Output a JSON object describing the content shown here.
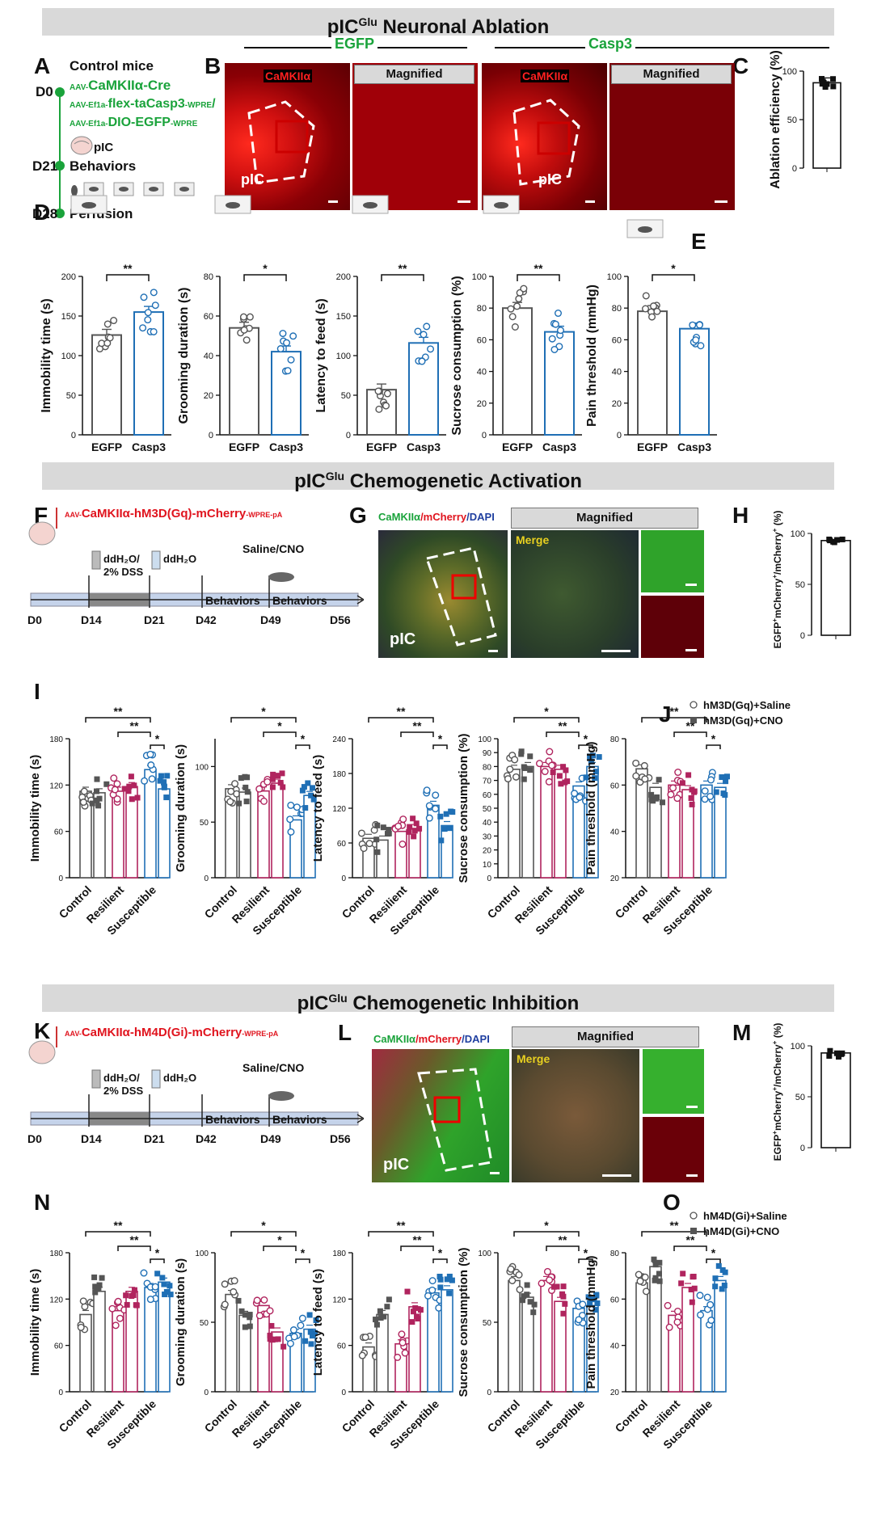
{
  "sections": {
    "ablation": {
      "title_main": "pIC",
      "title_sup": "Glu",
      "title_rest": " Neuronal Ablation"
    },
    "activation": {
      "title_main": "pIC",
      "title_sup": "Glu",
      "title_rest": " Chemogenetic Activation"
    },
    "inhibition": {
      "title_main": "pIC",
      "title_sup": "Glu",
      "title_rest": " Chemogenetic Inhibition"
    }
  },
  "panel_letters": {
    "A": "A",
    "B": "B",
    "C": "C",
    "D": "D",
    "E": "E",
    "F": "F",
    "G": "G",
    "H": "H",
    "I": "I",
    "J": "J",
    "K": "K",
    "L": "L",
    "M": "M",
    "N": "N",
    "O": "O"
  },
  "panelA": {
    "title": "Control mice",
    "d0": "D0",
    "d21": "D21",
    "d28": "D28",
    "virus1_prefix": "AAV-",
    "virus1": "CaMKIIα-Cre",
    "virus2_prefix": "AAV-Ef1a-",
    "virus2": "flex-taCasp3",
    "virus2_suffix": "-WPRE",
    "slash": "/",
    "virus3_prefix": "AAV-Ef1a-",
    "virus3": "DIO-EGFP",
    "virus3_suffix": "-WPRE",
    "region": "pIC",
    "behaviors": "Behaviors",
    "perfusion": "Perfusion"
  },
  "panelB": {
    "egfp_header": "EGFP",
    "casp3_header": "Casp3",
    "camk_label": "CaMKIIα",
    "magnified_label": "Magnified",
    "region": "pIC"
  },
  "panelC": {
    "ylabel": "Ablation efficiency (%)",
    "ticks": [
      "0",
      "50",
      "100"
    ]
  },
  "panelD_E": {
    "groups": [
      "EGFP",
      "Casp3"
    ],
    "charts": [
      {
        "ylabel": "Immobility time (s)",
        "ticks": [
          "0",
          "50",
          "100",
          "150",
          "200"
        ],
        "sig": "**"
      },
      {
        "ylabel": "Grooming duration (s)",
        "ticks": [
          "0",
          "20",
          "40",
          "60",
          "80"
        ],
        "sig": "*"
      },
      {
        "ylabel": "Latency to feed (s)",
        "ticks": [
          "0",
          "50",
          "100",
          "150",
          "200"
        ],
        "sig": "**"
      },
      {
        "ylabel": "Sucrose consumption (%)",
        "ticks": [
          "0",
          "20",
          "40",
          "60",
          "80",
          "100"
        ],
        "sig": "**"
      },
      {
        "ylabel": "Pain threshold (mmHg)",
        "ticks": [
          "0",
          "20",
          "40",
          "60",
          "80",
          "100"
        ],
        "sig": "*"
      }
    ]
  },
  "panelF": {
    "virus_prefix": "AAV-",
    "virus": "CaMKIIα-hM3D(Gq)-mCherry",
    "virus_suffix": "-WPRE-pA",
    "water1": "ddH₂O/",
    "dss": "2% DSS",
    "water2": "ddH₂O",
    "treatment": "Saline/CNO",
    "behaviors1": "Behaviors",
    "behaviors2": "Behaviors",
    "days": [
      "D0",
      "D14",
      "D21",
      "D42",
      "D49",
      "D56"
    ]
  },
  "panelG": {
    "stain_a": "CaMKIIα",
    "stain_b": "/mCherry",
    "stain_c": "/DAPI",
    "magnified_label": "Magnified",
    "merge": "Merge",
    "region": "pIC"
  },
  "panelH": {
    "ylabel_part1": "EGFP",
    "ylabel_part2": "mCherry",
    "ylabel_part3": "/mCherry",
    "ylabel_part4": " (%)",
    "ticks": [
      "0",
      "50",
      "100"
    ]
  },
  "panelI_J": {
    "groups": [
      "Control",
      "Resilient",
      "Susceptible"
    ],
    "legend": [
      "hM3D(Gq)+Saline",
      "hM3D(Gq)+CNO"
    ],
    "charts": [
      {
        "ylabel": "Immobility time (s)",
        "ticks": [
          "0",
          "60",
          "120",
          "180"
        ]
      },
      {
        "ylabel": "Grooming duration (s)",
        "ticks": [
          "0",
          "50",
          "100"
        ]
      },
      {
        "ylabel": "Latency to feed (s)",
        "ticks": [
          "0",
          "60",
          "120",
          "180",
          "240"
        ]
      },
      {
        "ylabel": "Sucrose consumption (%)",
        "ticks": [
          "0",
          "10",
          "20",
          "30",
          "40",
          "50",
          "60",
          "70",
          "80",
          "90",
          "100"
        ]
      },
      {
        "ylabel": "Pain threshold (mmHg)",
        "ticks": [
          "20",
          "40",
          "60",
          "80"
        ]
      }
    ]
  },
  "panelK": {
    "virus_prefix": "AAV-",
    "virus": "CaMKIIα-hM4D(Gi)-mCherry",
    "virus_suffix": "-WPRE-pA",
    "water1": "ddH₂O/",
    "dss": "2% DSS",
    "water2": "ddH₂O",
    "treatment": "Saline/CNO",
    "behaviors1": "Behaviors",
    "behaviors2": "Behaviors",
    "days": [
      "D0",
      "D14",
      "D21",
      "D42",
      "D49",
      "D56"
    ]
  },
  "panelL": {
    "stain_a": "CaMKIIα",
    "stain_b": "/mCherry",
    "stain_c": "/DAPI",
    "magnified_label": "Magnified",
    "merge": "Merge",
    "region": "pIC"
  },
  "panelM": {
    "ylabel_part1": "EGFP",
    "ylabel_part2": "mCherry",
    "ylabel_part3": "/mCherry",
    "ylabel_part4": " (%)",
    "ticks": [
      "0",
      "50",
      "100"
    ]
  },
  "panelN_O": {
    "groups": [
      "Control",
      "Resilient",
      "Susceptible"
    ],
    "legend": [
      "hM4D(Gi)+Saline",
      "hM4D(Gi)+CNO"
    ],
    "charts": [
      {
        "ylabel": "Immobility time (s)",
        "ticks": [
          "0",
          "60",
          "120",
          "180"
        ]
      },
      {
        "ylabel": "Grooming duration (s)",
        "ticks": [
          "0",
          "50",
          "100"
        ]
      },
      {
        "ylabel": "Latency to feed (s)",
        "ticks": [
          "0",
          "60",
          "120",
          "180"
        ]
      },
      {
        "ylabel": "Sucrose consumption (%)",
        "ticks": [
          "0",
          "50",
          "100"
        ]
      },
      {
        "ylabel": "Pain threshold (mmHg)",
        "ticks": [
          "20",
          "40",
          "60",
          "80"
        ]
      }
    ]
  },
  "colors": {
    "green": "#1aa33b",
    "red": "#e0141e",
    "blue": "#1f6fb5",
    "magenta": "#b0245e",
    "gray": "#555555",
    "dark": "#444444"
  },
  "chart_data": [
    {
      "panel": "C",
      "type": "bar",
      "categories": [
        "Casp3"
      ],
      "values": [
        88
      ],
      "ylim": [
        0,
        100
      ],
      "ylabel": "Ablation efficiency (%)"
    },
    {
      "panel": "D",
      "type": "bar",
      "categories": [
        "EGFP",
        "Casp3"
      ],
      "values": [
        126,
        155
      ],
      "ylim": [
        0,
        200
      ],
      "ylabel": "Immobility time (s)",
      "significance": "**"
    },
    {
      "panel": "D",
      "type": "bar",
      "categories": [
        "EGFP",
        "Casp3"
      ],
      "values": [
        54,
        42
      ],
      "ylim": [
        0,
        80
      ],
      "ylabel": "Grooming duration (s)",
      "significance": "*"
    },
    {
      "panel": "D",
      "type": "bar",
      "categories": [
        "EGFP",
        "Casp3"
      ],
      "values": [
        57,
        116
      ],
      "ylim": [
        0,
        200
      ],
      "ylabel": "Latency to feed (s)",
      "significance": "**"
    },
    {
      "panel": "D",
      "type": "bar",
      "categories": [
        "EGFP",
        "Casp3"
      ],
      "values": [
        80,
        65
      ],
      "ylim": [
        0,
        100
      ],
      "ylabel": "Sucrose consumption (%)",
      "significance": "**"
    },
    {
      "panel": "E",
      "type": "bar",
      "categories": [
        "EGFP",
        "Casp3"
      ],
      "values": [
        78,
        67
      ],
      "ylim": [
        0,
        100
      ],
      "ylabel": "Pain threshold (mmHg)",
      "significance": "*"
    },
    {
      "panel": "H",
      "type": "bar",
      "categories": [
        ""
      ],
      "values": [
        93
      ],
      "ylim": [
        0,
        100
      ]
    },
    {
      "panel": "I",
      "type": "bar",
      "categories": [
        "Control",
        "Resilient",
        "Susceptible"
      ],
      "ylim": [
        0,
        180
      ],
      "ylabel": "Immobility time (s)",
      "series": [
        {
          "name": "hM3D(Gq)+Saline",
          "values": [
            112,
            112,
            140
          ]
        },
        {
          "name": "hM3D(Gq)+CNO",
          "values": [
            110,
            118,
            115
          ]
        }
      ]
    },
    {
      "panel": "I",
      "type": "bar",
      "categories": [
        "Control",
        "Resilient",
        "Susceptible"
      ],
      "ylim": [
        0,
        125
      ],
      "ylabel": "Grooming duration (s)",
      "series": [
        {
          "name": "hM3D(Gq)+Saline",
          "values": [
            80,
            78,
            52
          ]
        },
        {
          "name": "hM3D(Gq)+CNO",
          "values": [
            77,
            85,
            74
          ]
        }
      ]
    },
    {
      "panel": "I",
      "type": "bar",
      "categories": [
        "Control",
        "Resilient",
        "Susceptible"
      ],
      "ylim": [
        0,
        240
      ],
      "ylabel": "Latency to feed (s)",
      "series": [
        {
          "name": "hM3D(Gq)+Saline",
          "values": [
            68,
            80,
            125
          ]
        },
        {
          "name": "hM3D(Gq)+CNO",
          "values": [
            65,
            85,
            90
          ]
        }
      ]
    },
    {
      "panel": "I",
      "type": "bar",
      "categories": [
        "Control",
        "Resilient",
        "Susceptible"
      ],
      "ylim": [
        0,
        100
      ],
      "ylabel": "Sucrose consumption (%)",
      "series": [
        {
          "name": "hM3D(Gq)+Saline",
          "values": [
            78,
            80,
            66
          ]
        },
        {
          "name": "hM3D(Gq)+CNO",
          "values": [
            80,
            78,
            80
          ]
        }
      ]
    },
    {
      "panel": "J",
      "type": "bar",
      "categories": [
        "Control",
        "Resilient",
        "Susceptible"
      ],
      "ylim": [
        20,
        80
      ],
      "ylabel": "Pain threshold (mmHg)",
      "series": [
        {
          "name": "hM3D(Gq)+Saline",
          "values": [
            67,
            60,
            60
          ]
        },
        {
          "name": "hM3D(Gq)+CNO",
          "values": [
            59,
            58,
            59
          ]
        }
      ]
    },
    {
      "panel": "M",
      "type": "bar",
      "categories": [
        ""
      ],
      "values": [
        93
      ],
      "ylim": [
        0,
        100
      ]
    },
    {
      "panel": "N",
      "type": "bar",
      "categories": [
        "Control",
        "Resilient",
        "Susceptible"
      ],
      "ylim": [
        0,
        180
      ],
      "ylabel": "Immobility time (s)",
      "series": [
        {
          "name": "hM4D(Gi)+Saline",
          "values": [
            100,
            105,
            135
          ]
        },
        {
          "name": "hM4D(Gi)+CNO",
          "values": [
            130,
            130,
            142
          ]
        }
      ]
    },
    {
      "panel": "N",
      "type": "bar",
      "categories": [
        "Control",
        "Resilient",
        "Susceptible"
      ],
      "ylim": [
        0,
        100
      ],
      "ylabel": "Grooming duration (s)",
      "series": [
        {
          "name": "hM4D(Gi)+Saline",
          "values": [
            70,
            62,
            42
          ]
        },
        {
          "name": "hM4D(Gi)+CNO",
          "values": [
            55,
            43,
            45
          ]
        }
      ]
    },
    {
      "panel": "N",
      "type": "bar",
      "categories": [
        "Control",
        "Resilient",
        "Susceptible"
      ],
      "ylim": [
        0,
        180
      ],
      "ylabel": "Latency to feed (s)",
      "series": [
        {
          "name": "hM4D(Gi)+Saline",
          "values": [
            58,
            62,
            128
          ]
        },
        {
          "name": "hM4D(Gi)+CNO",
          "values": [
            100,
            110,
            132
          ]
        }
      ]
    },
    {
      "panel": "N",
      "type": "bar",
      "categories": [
        "Control",
        "Resilient",
        "Susceptible"
      ],
      "ylim": [
        0,
        100
      ],
      "ylabel": "Sucrose consumption (%)",
      "series": [
        {
          "name": "hM4D(Gi)+Saline",
          "values": [
            80,
            80,
            60
          ]
        },
        {
          "name": "hM4D(Gi)+CNO",
          "values": [
            68,
            65,
            62
          ]
        }
      ]
    },
    {
      "panel": "O",
      "type": "bar",
      "categories": [
        "Control",
        "Resilient",
        "Susceptible"
      ],
      "ylim": [
        20,
        80
      ],
      "ylabel": "Pain threshold (mmHg)",
      "series": [
        {
          "name": "hM4D(Gi)+Saline",
          "values": [
            67,
            53,
            55
          ]
        },
        {
          "name": "hM4D(Gi)+CNO",
          "values": [
            74,
            65,
            68
          ]
        }
      ]
    }
  ]
}
